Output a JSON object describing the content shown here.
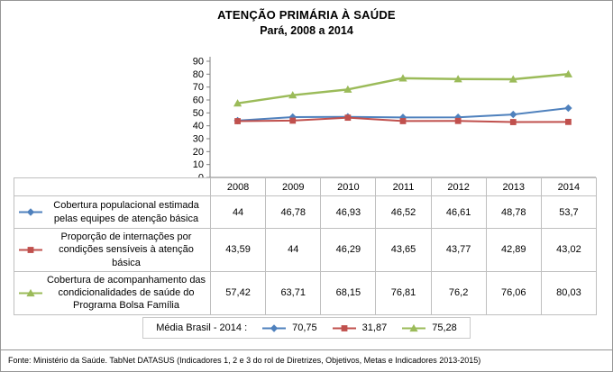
{
  "title": "ATENÇÃO PRIMÁRIA À SAÚDE",
  "subtitle": "Pará, 2008 a 2014",
  "source_note": "Fonte: Ministério da Saúde. TabNet DATASUS (Indicadores 1, 2 e 3 do rol de Diretrizes, Objetivos, Metas e Indicadores 2013-2015)",
  "media_brasil": {
    "label": "Média Brasil - 2014 :",
    "items": [
      {
        "marker": "diamond",
        "color": "#4F81BD",
        "value": "70,75"
      },
      {
        "marker": "square",
        "color": "#C0504D",
        "value": "31,87"
      },
      {
        "marker": "triangle",
        "color": "#9BBB59",
        "value": "75,28"
      }
    ]
  },
  "chart_data": {
    "type": "line",
    "title": "ATENÇÃO PRIMÁRIA À SAÚDE",
    "subtitle": "Pará, 2008 a 2014",
    "categories": [
      "2008",
      "2009",
      "2010",
      "2011",
      "2012",
      "2013",
      "2014"
    ],
    "ylim": [
      0,
      90
    ],
    "ytick_step": 10,
    "grid": false,
    "legend_position": "data-table-left",
    "series": [
      {
        "name": "Cobertura  populacional estimada pelas equipes de atenção básica",
        "marker": "diamond",
        "color": "#4F81BD",
        "values": [
          44,
          46.78,
          46.93,
          46.52,
          46.61,
          48.78,
          53.7
        ],
        "display": [
          "44",
          "46,78",
          "46,93",
          "46,52",
          "46,61",
          "48,78",
          "53,7"
        ]
      },
      {
        "name": "Proporção de internações por condições sensíveis à atenção básica",
        "marker": "square",
        "color": "#C0504D",
        "values": [
          43.59,
          44,
          46.29,
          43.65,
          43.77,
          42.89,
          43.02
        ],
        "display": [
          "43,59",
          "44",
          "46,29",
          "43,65",
          "43,77",
          "42,89",
          "43,02"
        ]
      },
      {
        "name": "Cobertura de acompanhamento das condicionalidades de saúde do Programa Bolsa Família",
        "marker": "triangle",
        "color": "#9BBB59",
        "values": [
          57.42,
          63.71,
          68.15,
          76.81,
          76.2,
          76.06,
          80.03
        ],
        "display": [
          "57,42",
          "63,71",
          "68,15",
          "76,81",
          "76,2",
          "76,06",
          "80,03"
        ]
      }
    ]
  }
}
